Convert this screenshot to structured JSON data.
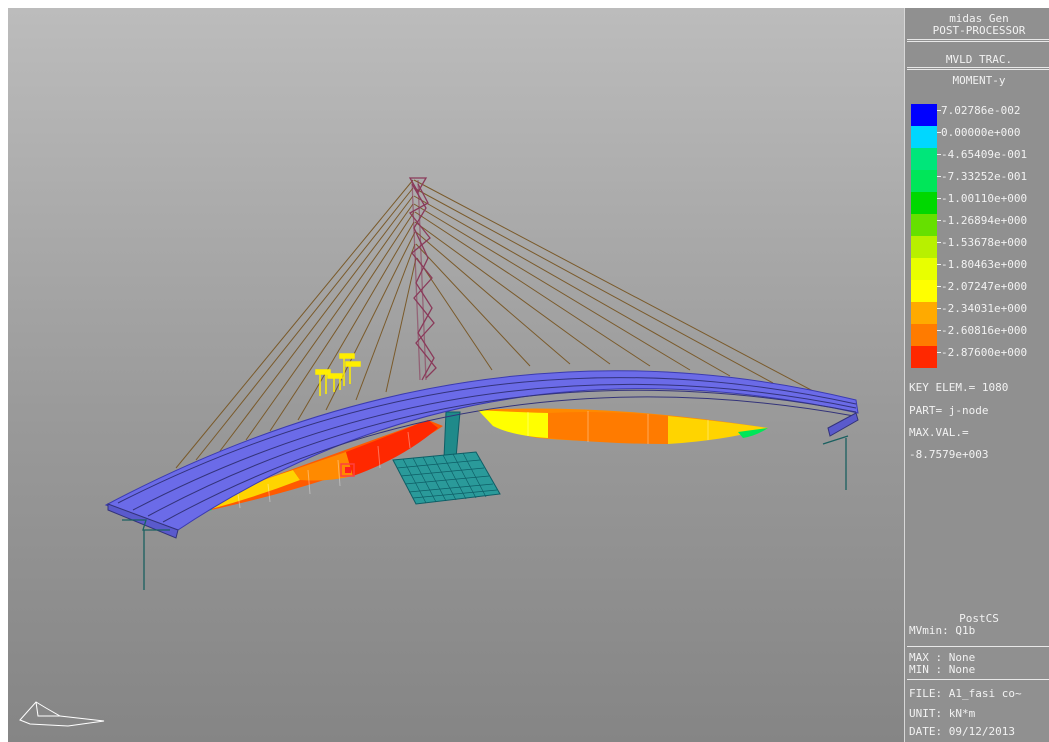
{
  "panel": {
    "program": "midas Gen",
    "module": "POST-PROCESSOR",
    "analysis": "MVLD TRAC.",
    "result": "MOMENT-y",
    "legend": [
      {
        "value": "7.02786e-002",
        "color": "#0000ff"
      },
      {
        "value": "0.00000e+000",
        "color": "#00d7ff"
      },
      {
        "value": "-4.65409e-001",
        "color": "#00e67a"
      },
      {
        "value": "-7.33252e-001",
        "color": "#00e659"
      },
      {
        "value": "-1.00110e+000",
        "color": "#00d800"
      },
      {
        "value": "-1.26894e+000",
        "color": "#66e000"
      },
      {
        "value": "-1.53678e+000",
        "color": "#b8f000"
      },
      {
        "value": "-1.80463e+000",
        "color": "#e8ff00"
      },
      {
        "value": "-2.07247e+000",
        "color": "#ffff00"
      },
      {
        "value": "-2.34031e+000",
        "color": "#ffaa00"
      },
      {
        "value": "-2.60816e+000",
        "color": "#ff7b00"
      },
      {
        "value": "-2.87600e+000",
        "color": "#ff2800"
      }
    ],
    "key_elem": "KEY ELEM.= 1080",
    "part": "PART= j-node",
    "max_val_label": "MAX.VAL.=",
    "max_val": "-8.7579e+003",
    "stage": "PostCS",
    "mvmin": "MVmin: Q1b",
    "max": "MAX : None",
    "min": "MIN : None",
    "file": "FILE: A1_fasi co~",
    "unit": "UNIT: kN*m",
    "date": "DATE: 09/12/2013"
  }
}
